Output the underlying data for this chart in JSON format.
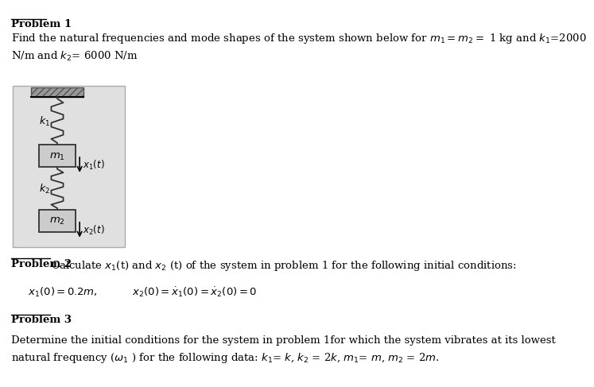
{
  "bg_color": "#ffffff",
  "fig_width": 6.52,
  "fig_height": 4.76,
  "problem1_title": "Problem 1",
  "problem1_text": "Find the natural frequencies and mode shapes of the system shown below for $m_1= m_2=$ 1 kg and $k_1$=2000\nN/m and $k_2$= 6000 N/m",
  "problem2_title": "Problem 2",
  "problem2_text": "Calculate $x_1$(t) and $x_2$ (t) of the system in problem 1 for the following initial conditions:",
  "problem2_eq": "$x_1(0) = 0.2m,$          $x_2(0) = \\dot{x}_1(0) = \\dot{x}_2(0) = 0$",
  "problem3_title": "Problem 3",
  "problem3_text": "Determine the initial conditions for the system in problem 1for which the system vibrates at its lowest\nnatural frequency ($\\omega_1$ ) for the following data: $k_1$= $k$, $k_2$ = 2$k$, $m_1$= $m$, $m_2$ = 2$m$.",
  "text_color": "#000000",
  "font_size_body": 9.5,
  "font_size_title": 9.5
}
